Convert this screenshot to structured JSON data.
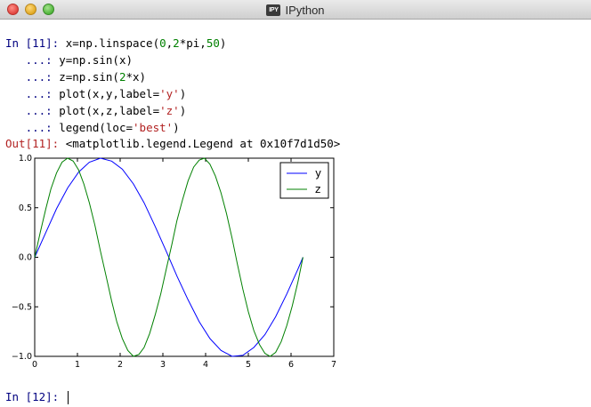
{
  "window": {
    "title": "IPython",
    "app_icon_text": "IPY"
  },
  "cell_in": {
    "prompt": "In [11]:",
    "cont_prompt": "   ...:",
    "lines": [
      [
        "x=np.linspace(",
        "0",
        ",",
        "2",
        "*pi,",
        "50",
        ")"
      ],
      [
        "y=np.sin(x)"
      ],
      [
        "z=np.sin(",
        "2",
        "*x)"
      ],
      [
        "plot(x,y,label=",
        "'y'",
        ")"
      ],
      [
        "plot(x,z,label=",
        "'z'",
        ")"
      ],
      [
        "legend(loc=",
        "'best'",
        ")"
      ]
    ]
  },
  "cell_out": {
    "prompt": "Out[11]:",
    "text": "<matplotlib.legend.Legend at 0x10f7d1d50>"
  },
  "next_prompt": "In [12]:",
  "chart_data": {
    "type": "line",
    "xlim": [
      0,
      7
    ],
    "ylim": [
      -1.0,
      1.0
    ],
    "x_ticks": [
      "0",
      "1",
      "2",
      "3",
      "4",
      "5",
      "6",
      "7"
    ],
    "y_ticks": [
      "1.0",
      "0.5",
      "0.0",
      "−0.5",
      "−1.0"
    ],
    "x_tick_values": [
      0,
      1,
      2,
      3,
      4,
      5,
      6,
      7
    ],
    "y_tick_values": [
      1.0,
      0.5,
      0.0,
      -0.5,
      -1.0
    ],
    "grid": false,
    "legend_position": "top-right",
    "series": [
      {
        "name": "y",
        "color": "#0000ff",
        "x": [
          0,
          0.26,
          0.51,
          0.77,
          1.03,
          1.28,
          1.54,
          1.8,
          2.05,
          2.31,
          2.56,
          2.82,
          3.08,
          3.33,
          3.59,
          3.85,
          4.1,
          4.36,
          4.62,
          4.87,
          5.13,
          5.39,
          5.64,
          5.9,
          6.16,
          6.28
        ],
        "y": [
          0,
          0.25,
          0.49,
          0.7,
          0.86,
          0.96,
          1.0,
          0.97,
          0.89,
          0.74,
          0.55,
          0.31,
          0.06,
          -0.19,
          -0.43,
          -0.65,
          -0.82,
          -0.94,
          -1.0,
          -0.99,
          -0.91,
          -0.78,
          -0.6,
          -0.37,
          -0.12,
          0
        ]
      },
      {
        "name": "z",
        "color": "#008000",
        "x": [
          0,
          0.13,
          0.26,
          0.38,
          0.51,
          0.64,
          0.77,
          0.9,
          1.03,
          1.15,
          1.28,
          1.41,
          1.54,
          1.67,
          1.8,
          1.92,
          2.05,
          2.18,
          2.31,
          2.44,
          2.56,
          2.69,
          2.82,
          2.95,
          3.08,
          3.21,
          3.33,
          3.46,
          3.59,
          3.72,
          3.85,
          3.97,
          4.1,
          4.23,
          4.36,
          4.49,
          4.62,
          4.74,
          4.87,
          5.0,
          5.13,
          5.26,
          5.39,
          5.51,
          5.64,
          5.77,
          5.9,
          6.03,
          6.16,
          6.28
        ],
        "y": [
          0,
          0.25,
          0.49,
          0.69,
          0.85,
          0.96,
          1.0,
          0.97,
          0.88,
          0.74,
          0.55,
          0.32,
          0.06,
          -0.19,
          -0.44,
          -0.65,
          -0.82,
          -0.94,
          -1.0,
          -0.98,
          -0.91,
          -0.77,
          -0.58,
          -0.37,
          -0.12,
          0.13,
          0.37,
          0.58,
          0.77,
          0.91,
          0.98,
          1.0,
          0.94,
          0.82,
          0.65,
          0.44,
          0.19,
          -0.06,
          -0.32,
          -0.55,
          -0.74,
          -0.88,
          -0.97,
          -1.0,
          -0.96,
          -0.85,
          -0.69,
          -0.49,
          -0.25,
          0
        ]
      }
    ]
  }
}
